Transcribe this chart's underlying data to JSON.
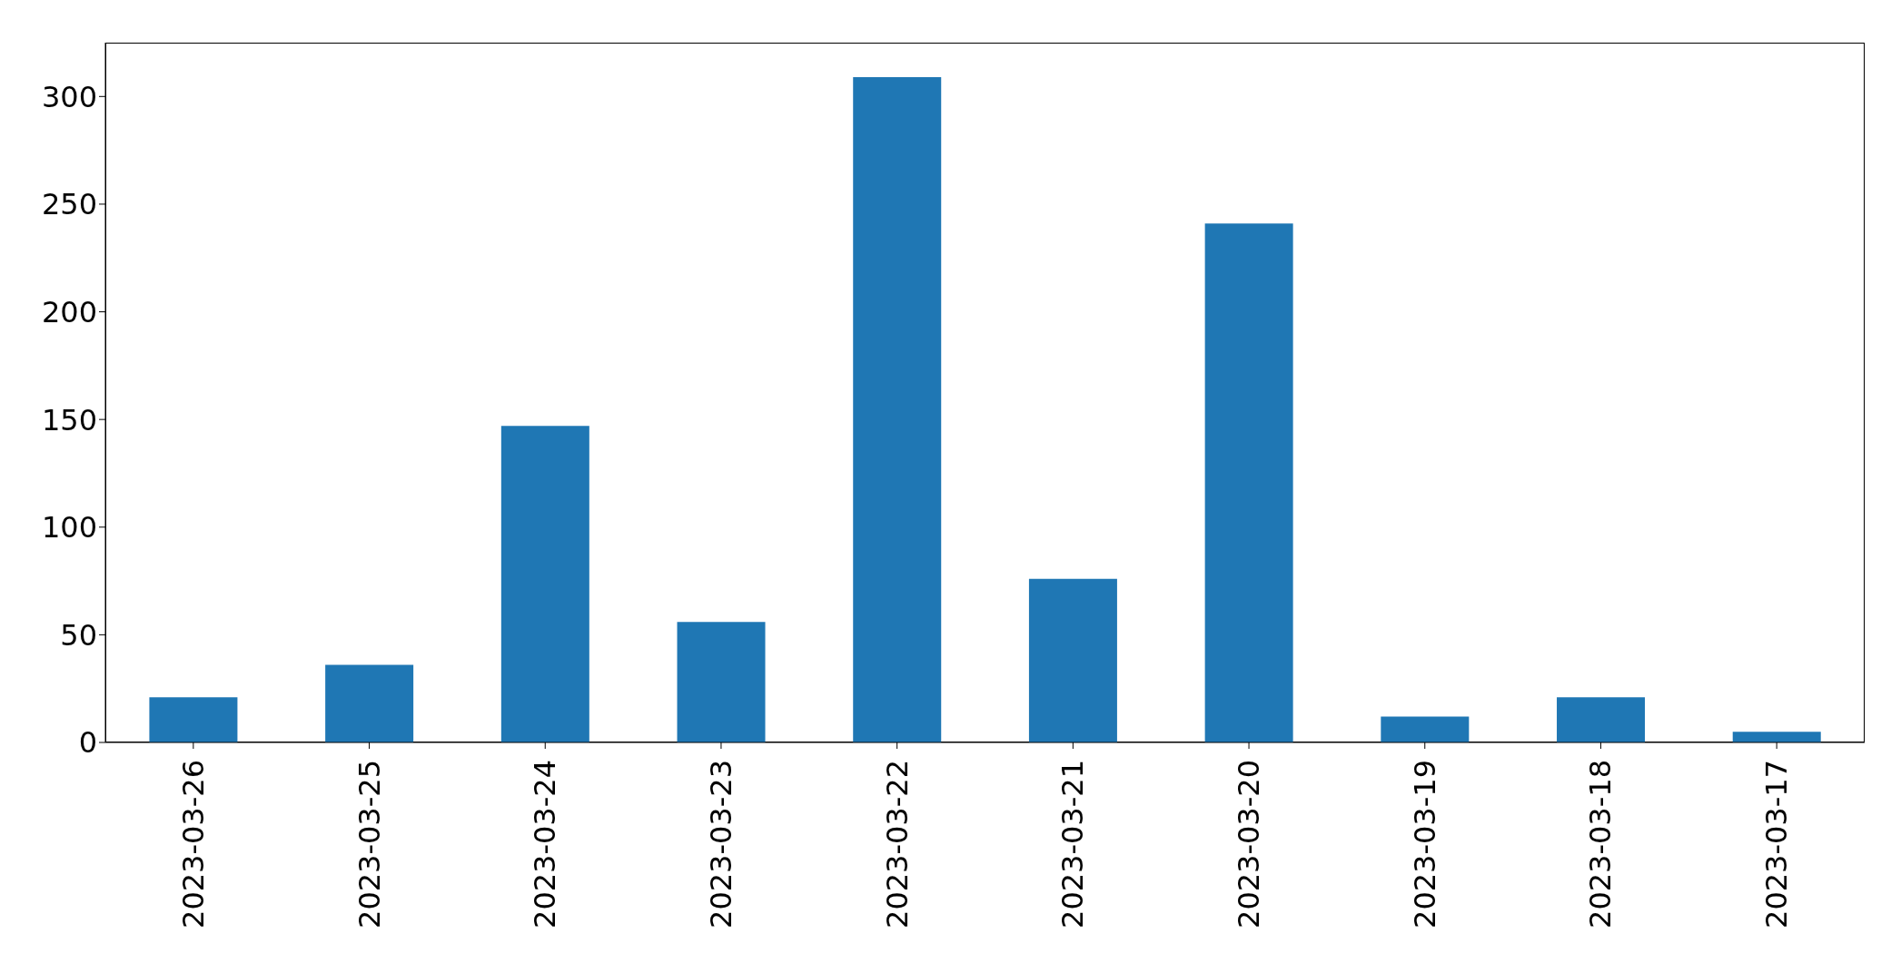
{
  "chart_data": {
    "type": "bar",
    "categories": [
      "2023-03-26",
      "2023-03-25",
      "2023-03-24",
      "2023-03-23",
      "2023-03-22",
      "2023-03-21",
      "2023-03-20",
      "2023-03-19",
      "2023-03-18",
      "2023-03-17"
    ],
    "values": [
      21,
      36,
      147,
      56,
      309,
      76,
      241,
      12,
      21,
      5
    ],
    "color": "#1f77b4",
    "ylim": [
      0,
      325
    ],
    "yticks": [
      0,
      50,
      100,
      150,
      200,
      250,
      300
    ],
    "grid": false
  }
}
